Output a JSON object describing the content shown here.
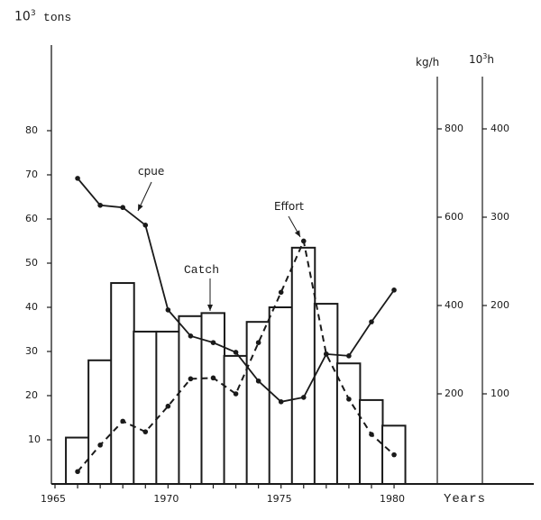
{
  "chart_data": {
    "type": "bar",
    "title": "",
    "xlabel": "Years",
    "ylabel": "10³ tons",
    "x_ticks": [
      1965,
      1970,
      1975,
      1980
    ],
    "x_range": [
      1965,
      1980
    ],
    "categories": [
      1966,
      1967,
      1968,
      1969,
      1970,
      1971,
      1972,
      1973,
      1974,
      1975,
      1976,
      1977,
      1978,
      1979,
      1980
    ],
    "series": [
      {
        "name": "Catch",
        "type": "bar",
        "axis": "left",
        "unit": "10³ tons",
        "values": [
          10.5,
          28,
          45.5,
          34.5,
          34.5,
          38,
          38.7,
          29,
          36.7,
          40,
          53.5,
          40.8,
          27.3,
          19,
          13.2
        ]
      },
      {
        "name": "cpue",
        "type": "line",
        "style": "solid",
        "axis": "right-1",
        "unit": "kg/h",
        "values": [
          688,
          627,
          622,
          582,
          390,
          331,
          316,
          294,
          229,
          182,
          192,
          290,
          286,
          363,
          435
        ]
      },
      {
        "name": "Effort",
        "type": "line",
        "style": "dashed",
        "axis": "right-2",
        "unit": "10³h",
        "values": [
          12,
          42,
          69,
          57,
          86,
          117,
          118,
          100,
          158,
          215,
          273,
          145,
          94,
          54,
          31
        ]
      }
    ],
    "axes": {
      "left": {
        "label": "10³ tons",
        "ticks": [
          10,
          20,
          30,
          40,
          50,
          60,
          70,
          80
        ],
        "range": [
          0,
          80
        ]
      },
      "right-1": {
        "label": "kg/h",
        "ticks": [
          200,
          400,
          600,
          800
        ],
        "range": [
          0,
          800
        ]
      },
      "right-2": {
        "label": "10³h",
        "ticks": [
          100,
          200,
          300,
          400
        ],
        "range": [
          0,
          400
        ]
      }
    },
    "annotations": [
      {
        "text": "cpue",
        "target_series": "cpue"
      },
      {
        "text": "Catch",
        "target_series": "Catch"
      },
      {
        "text": "Effort",
        "target_series": "Effort"
      }
    ],
    "grid": false,
    "legend": "none (inline arrow annotations)"
  },
  "labels": {
    "left_axis_title_base": "10",
    "left_axis_title_exp": "3",
    "left_axis_title_unit": "tons",
    "right1_axis_title": "kg/h",
    "right2_axis_title_base": "10",
    "right2_axis_title_exp": "3",
    "right2_axis_title_unit": "h",
    "x_axis_title": "Years",
    "annotation_cpue": "cpue",
    "annotation_catch": "Catch",
    "annotation_effort": "Effort"
  },
  "colors": {
    "ink": "#1a1a1a",
    "background": "#ffffff"
  }
}
